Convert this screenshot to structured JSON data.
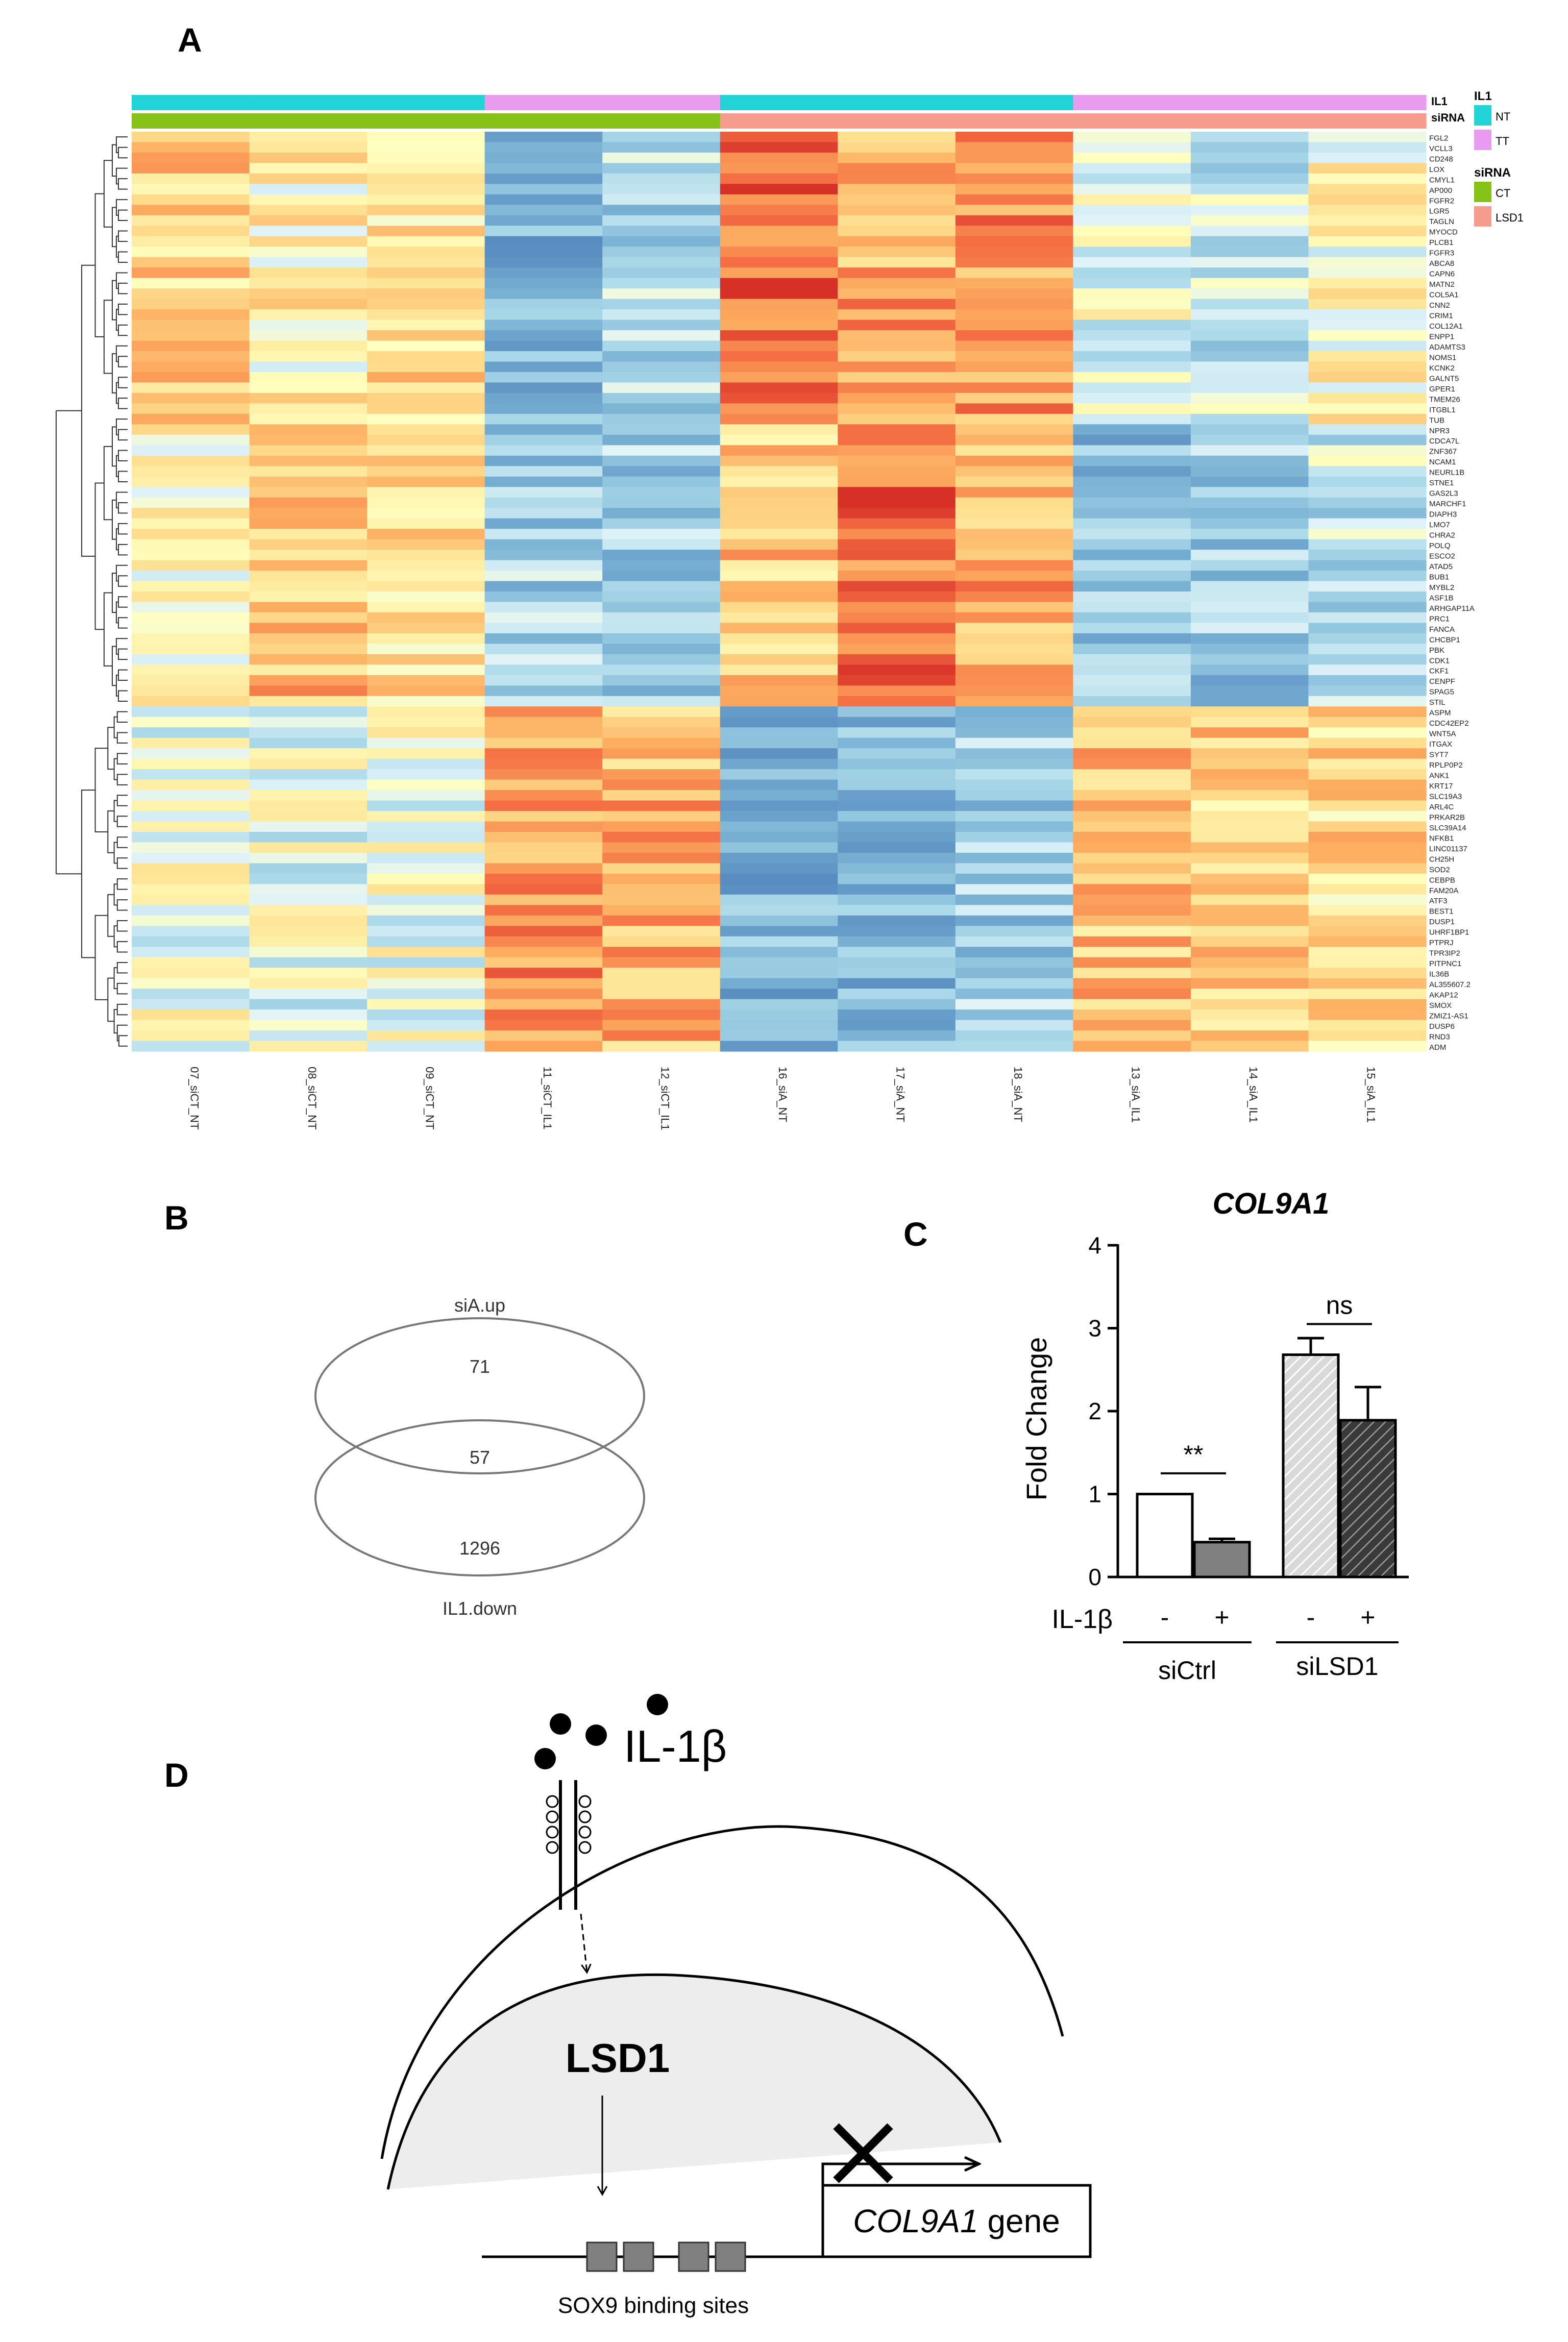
{
  "panels": {
    "a": "A",
    "b": "B",
    "c": "C",
    "d": "D"
  },
  "heatmap": {
    "annotation_labels": {
      "il1": "IL1",
      "sirna": "siRNA"
    },
    "legend": {
      "il1_title": "IL1",
      "il1_items": [
        {
          "label": "NT",
          "color": "#22d3d8"
        },
        {
          "label": "TT",
          "color": "#e79cf0"
        }
      ],
      "sirna_title": "siRNA",
      "sirna_items": [
        {
          "label": "CT",
          "color": "#86c218"
        },
        {
          "label": "LSD1",
          "color": "#f59c8d"
        }
      ]
    },
    "samples": [
      "07_siCT_NT",
      "08_siCT_NT",
      "09_siCT_NT",
      "11_siCT_IL1",
      "12_siCT_IL1",
      "16_siA_NT",
      "17_siA_NT",
      "18_siA_NT",
      "13_siA_IL1",
      "14_siA_IL1",
      "15_siA_IL1"
    ],
    "il1_groups": [
      "NT",
      "NT",
      "NT",
      "TT",
      "TT",
      "NT",
      "NT",
      "NT",
      "TT",
      "TT",
      "TT"
    ],
    "sirna_groups": [
      "CT",
      "CT",
      "CT",
      "CT",
      "CT",
      "LSD1",
      "LSD1",
      "LSD1",
      "LSD1",
      "LSD1",
      "LSD1"
    ],
    "genes": [
      "FGL2",
      "VCLL3",
      "CD248",
      "LOX",
      "CMYL1",
      "AP000",
      "FGFR2",
      "LGR5",
      "TAGLN",
      "MYOCD",
      "PLCB1",
      "FGFR3",
      "ABCA8",
      "CAPN6",
      "MATN2",
      "COL5A1",
      "CNN2",
      "CRIM1",
      "COL12A1",
      "ENPP1",
      "ADAMTS3",
      "NOMS1",
      "KCNK2",
      "GALNT5",
      "GPER1",
      "TMEM26",
      "ITGBL1",
      "TUB",
      "NPR3",
      "CDCA7L",
      "ZNF367",
      "NCAM1",
      "NEURL1B",
      "STNE1",
      "GAS2L3",
      "MARCHF1",
      "DIAPH3",
      "LMO7",
      "CHRA2",
      "POLQ",
      "ESCO2",
      "ATAD5",
      "BUB1",
      "MYBL2",
      "ASF1B",
      "ARHGAP11A",
      "PRC1",
      "FANCA",
      "CHCBP1",
      "PBK",
      "CDK1",
      "CKF1",
      "CENPF",
      "SPAG5",
      "STIL",
      "ASPM",
      "CDC42EP2",
      "WNT5A",
      "ITGAX",
      "SYT7",
      "RPLP0P2",
      "ANK1",
      "KRT17",
      "SLC19A3",
      "ARL4C",
      "PRKAR2B",
      "SLC39A14",
      "NFKB1",
      "LINC01137",
      "CH25H",
      "SOD2",
      "CEBPB",
      "FAM20A",
      "ATF3",
      "BEST1",
      "DUSP1",
      "UHRF1BP1",
      "PTPRJ",
      "TPR3IP2",
      "PITPNC1",
      "IL36B",
      "AL355607.2",
      "AKAP12",
      "SMOX",
      "ZMIZ1-AS1",
      "DUSP6",
      "RND3",
      "ADM"
    ]
  },
  "venn": {
    "top_label": "siA.up",
    "bottom_label": "IL1.down",
    "only_top": "71",
    "overlap": "57",
    "only_bottom": "1296"
  },
  "chart_data": {
    "type": "bar",
    "title": "COL9A1",
    "ylabel": "Fold Change",
    "ylim": [
      0,
      4
    ],
    "yticks": [
      "0",
      "1",
      "2",
      "3",
      "4"
    ],
    "x_factor_label": "IL-1β",
    "categories": [
      "siCtrl -",
      "siCtrl +",
      "siLSD1 -",
      "siLSD1 +"
    ],
    "sign_labels": [
      "-",
      "+",
      "-",
      "+"
    ],
    "groups": [
      "siCtrl",
      "siLSD1"
    ],
    "values": [
      1.0,
      0.42,
      2.68,
      1.89
    ],
    "errors": [
      0.0,
      0.04,
      0.2,
      0.4
    ],
    "significance": [
      {
        "bars": [
          0,
          1
        ],
        "label": "**"
      },
      {
        "bars": [
          2,
          3
        ],
        "label": "ns"
      }
    ],
    "colors": {
      "fill": [
        "#ffffff",
        "#808080",
        "hatch-light",
        "hatch-dark"
      ]
    }
  },
  "diagram": {
    "ligand": "IL-1β",
    "enzyme": "LSD1",
    "gene_italic": "COL9A1",
    "gene_suffix": " gene",
    "binding_sites": "SOX9 binding sites"
  }
}
